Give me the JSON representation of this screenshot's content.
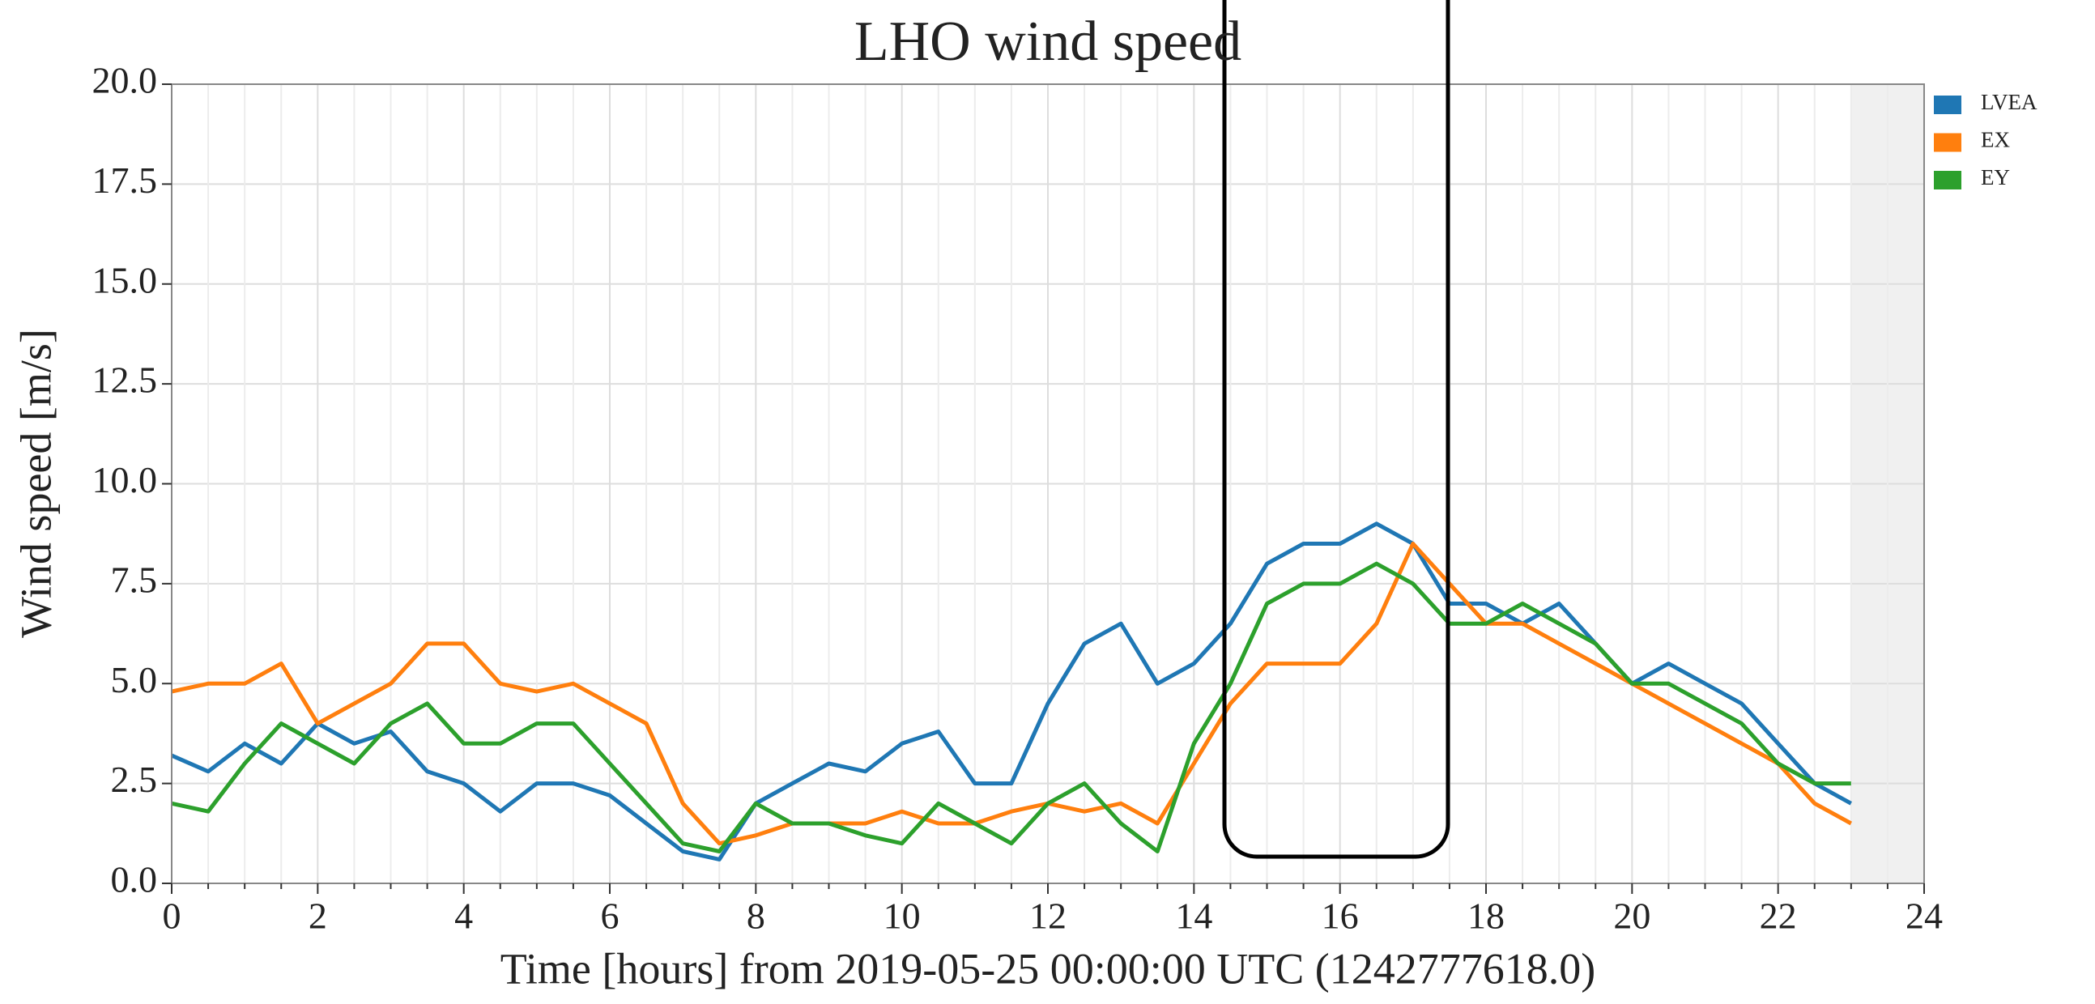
{
  "chart_data": {
    "type": "line",
    "title": "LHO wind speed",
    "x_label": "Time [hours] from 2019-05-25 00:00:00 UTC (1242777618.0)",
    "y_label": "Wind speed [m/s]",
    "x": [
      0,
      0.5,
      1,
      1.5,
      2,
      2.5,
      3,
      3.5,
      4,
      4.5,
      5,
      5.5,
      6,
      6.5,
      7,
      7.5,
      8,
      8.5,
      9,
      9.5,
      10,
      10.5,
      11,
      11.5,
      12,
      12.5,
      13,
      13.5,
      14,
      14.5,
      15,
      15.5,
      16,
      16.5,
      17,
      17.5,
      18,
      18.5,
      19,
      19.5,
      20,
      20.5,
      21,
      21.5,
      22,
      22.5,
      23
    ],
    "series": [
      {
        "name": "LVEA",
        "color": "#1f77b4",
        "values": [
          3.2,
          2.8,
          3.5,
          3.0,
          4.0,
          3.5,
          3.8,
          2.8,
          2.5,
          1.8,
          2.5,
          2.5,
          2.2,
          1.5,
          0.8,
          0.6,
          2.0,
          2.5,
          3.0,
          2.8,
          3.5,
          3.8,
          2.5,
          2.5,
          4.5,
          6.0,
          6.5,
          5.0,
          5.5,
          6.5,
          8.0,
          8.5,
          8.5,
          9.0,
          8.5,
          7.0,
          7.0,
          6.5,
          7.0,
          6.0,
          5.0,
          5.5,
          5.0,
          4.5,
          3.5,
          2.5,
          2.0
        ]
      },
      {
        "name": "EX",
        "color": "#ff7f0e",
        "values": [
          4.8,
          5.0,
          5.0,
          5.5,
          4.0,
          4.5,
          5.0,
          6.0,
          6.0,
          5.0,
          4.8,
          5.0,
          4.5,
          4.0,
          2.0,
          1.0,
          1.2,
          1.5,
          1.5,
          1.5,
          1.8,
          1.5,
          1.5,
          1.8,
          2.0,
          1.8,
          2.0,
          1.5,
          3.0,
          4.5,
          5.5,
          5.5,
          5.5,
          6.5,
          8.5,
          7.5,
          6.5,
          6.5,
          6.0,
          5.5,
          5.0,
          4.5,
          4.0,
          3.5,
          3.0,
          2.0,
          1.5
        ]
      },
      {
        "name": "EY",
        "color": "#2ca02c",
        "values": [
          2.0,
          1.8,
          3.0,
          4.0,
          3.5,
          3.0,
          4.0,
          4.5,
          3.5,
          3.5,
          4.0,
          4.0,
          3.0,
          2.0,
          1.0,
          0.8,
          2.0,
          1.5,
          1.5,
          1.2,
          1.0,
          2.0,
          1.5,
          1.0,
          2.0,
          2.5,
          1.5,
          0.8,
          3.5,
          5.0,
          7.0,
          7.5,
          7.5,
          8.0,
          7.5,
          6.5,
          6.5,
          7.0,
          6.5,
          6.0,
          5.0,
          5.0,
          4.5,
          4.0,
          3.0,
          2.5,
          2.5
        ]
      }
    ],
    "xlim": [
      0,
      24
    ],
    "xticks": [
      0,
      2,
      4,
      6,
      8,
      10,
      12,
      14,
      16,
      18,
      20,
      22,
      24
    ],
    "xminorticks": [
      0.5,
      1,
      1.5,
      2.5,
      3,
      3.5,
      4.5,
      5,
      5.5,
      6.5,
      7,
      7.5,
      8.5,
      9,
      9.5,
      10.5,
      11,
      11.5,
      12.5,
      13,
      13.5,
      14.5,
      15,
      15.5,
      16.5,
      17,
      17.5,
      18.5,
      19,
      19.5,
      20.5,
      21,
      21.5,
      22.5,
      23,
      23.5
    ],
    "ylim": [
      0,
      20
    ],
    "yticks": [
      {
        "value": 0,
        "label": "0.0"
      },
      2.5,
      {
        "value": 5,
        "label": "5.0"
      },
      7.5,
      {
        "value": 10,
        "label": "10.0"
      },
      12.5,
      {
        "value": 15,
        "label": "15.0"
      },
      17.5,
      {
        "value": 20,
        "label": "20.0"
      }
    ],
    "grid": true,
    "legend": "outside upper right"
  }
}
